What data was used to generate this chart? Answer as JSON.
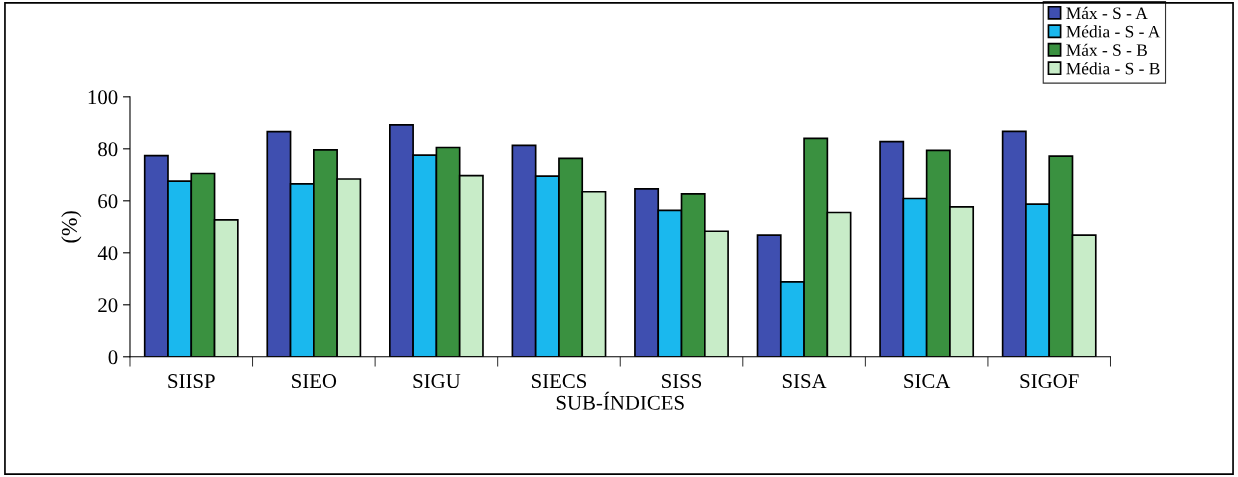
{
  "chart_data": {
    "type": "bar",
    "xlabel": "SUB-ÍNDICES",
    "ylabel": "(%)",
    "categories": [
      "SIISP",
      "SIEO",
      "SIGU",
      "SIECS",
      "SISS",
      "SISA",
      "SICA",
      "SIGOF"
    ],
    "series": [
      {
        "name": "Máx - S - A",
        "color": "#3f4fb0",
        "values": [
          77.4,
          86.6,
          89.2,
          81.3,
          64.6,
          46.8,
          82.8,
          86.7
        ]
      },
      {
        "name": "Média - S - A",
        "color": "#1ab8ee",
        "values": [
          67.6,
          66.5,
          77.6,
          69.5,
          56.3,
          28.8,
          60.9,
          58.7
        ]
      },
      {
        "name": "Máx - S - B",
        "color": "#3a9140",
        "values": [
          70.5,
          79.6,
          80.5,
          76.3,
          62.7,
          84.0,
          79.4,
          77.2
        ]
      },
      {
        "name": "Média - S - B",
        "color": "#c8ecc8",
        "values": [
          52.7,
          68.4,
          69.7,
          63.5,
          48.3,
          55.5,
          57.7,
          46.8
        ]
      }
    ],
    "ylim": [
      0,
      100
    ],
    "yticks": [
      0,
      20,
      40,
      60,
      80,
      100
    ],
    "grid": false,
    "legend": "top right"
  }
}
